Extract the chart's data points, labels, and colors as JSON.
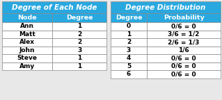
{
  "table1_title": "Degree of Each Node",
  "table1_headers": [
    "Node",
    "Degree"
  ],
  "table1_rows": [
    [
      "Ann",
      "1"
    ],
    [
      "Matt",
      "2"
    ],
    [
      "Alex",
      "2"
    ],
    [
      "John",
      "3"
    ],
    [
      "Steve",
      "1"
    ],
    [
      "Amy",
      "1"
    ]
  ],
  "table2_title": "Degree Distribution",
  "table2_headers": [
    "Degree",
    "Probability"
  ],
  "table2_rows": [
    [
      "0",
      "0/6 = 0"
    ],
    [
      "1",
      "3/6 = 1/2"
    ],
    [
      "2",
      "2/6 = 1/3"
    ],
    [
      "3",
      "1/6"
    ],
    [
      "4",
      "0/6 = 0"
    ],
    [
      "5",
      "0/6 = 0"
    ],
    [
      "6",
      "0/6 = 0"
    ]
  ],
  "header_bg": "#29a8e0",
  "title_bg": "#29a8e0",
  "header_text_color": "#ffffff",
  "row_text_color": "#000000",
  "border_color": "#888888",
  "bg_color": "#e8e8e8",
  "title_fontsize": 7.5,
  "header_fontsize": 6.8,
  "row_fontsize": 6.5
}
